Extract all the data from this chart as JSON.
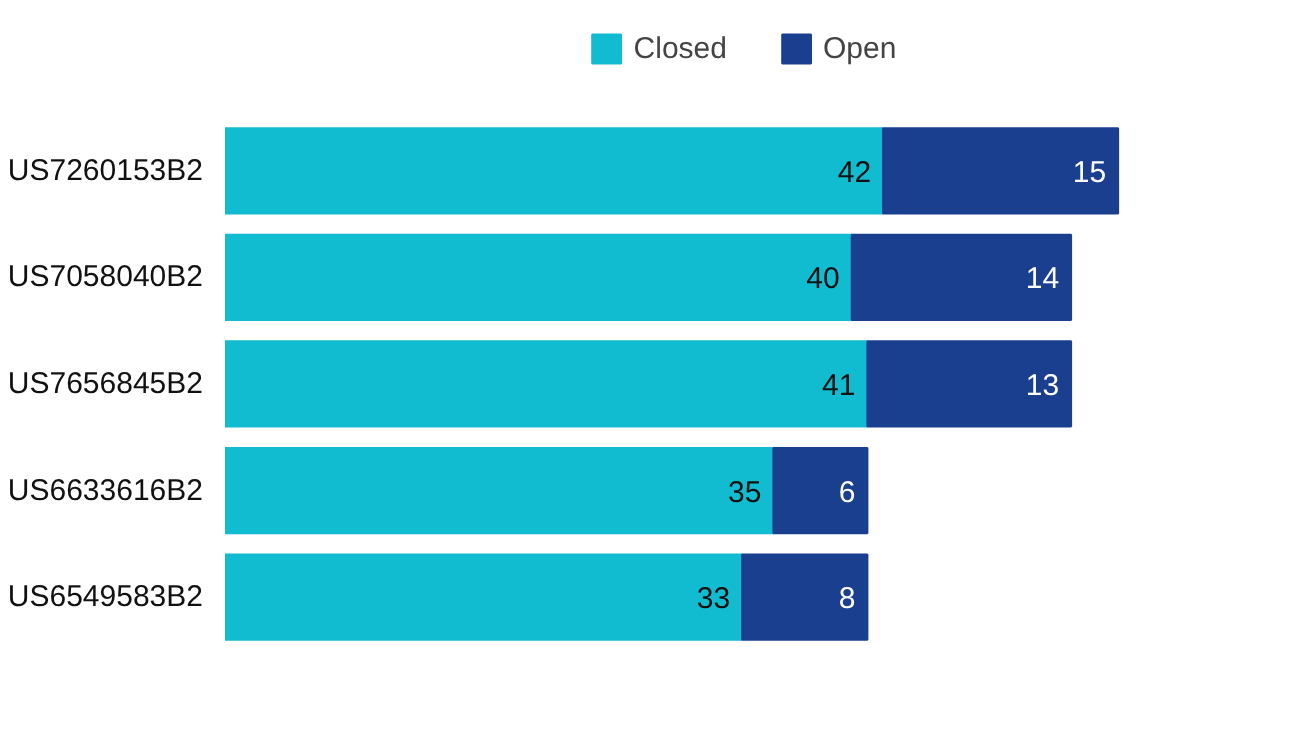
{
  "chart_data": {
    "type": "bar",
    "orientation": "horizontal",
    "stacked": true,
    "data_labels": true,
    "legend": "top",
    "grid": false,
    "tick_labels": "y",
    "categories": [
      "US7260153B2",
      "US7058040B2",
      "US7656845B2",
      "US6633616B2",
      "US6549583B2"
    ],
    "series": [
      {
        "name": "Closed",
        "color": "#12bcd0",
        "values": [
          42,
          40,
          41,
          35,
          33
        ]
      },
      {
        "name": "Open",
        "color": "#1b3f8f",
        "values": [
          15,
          14,
          13,
          6,
          8
        ]
      }
    ]
  }
}
